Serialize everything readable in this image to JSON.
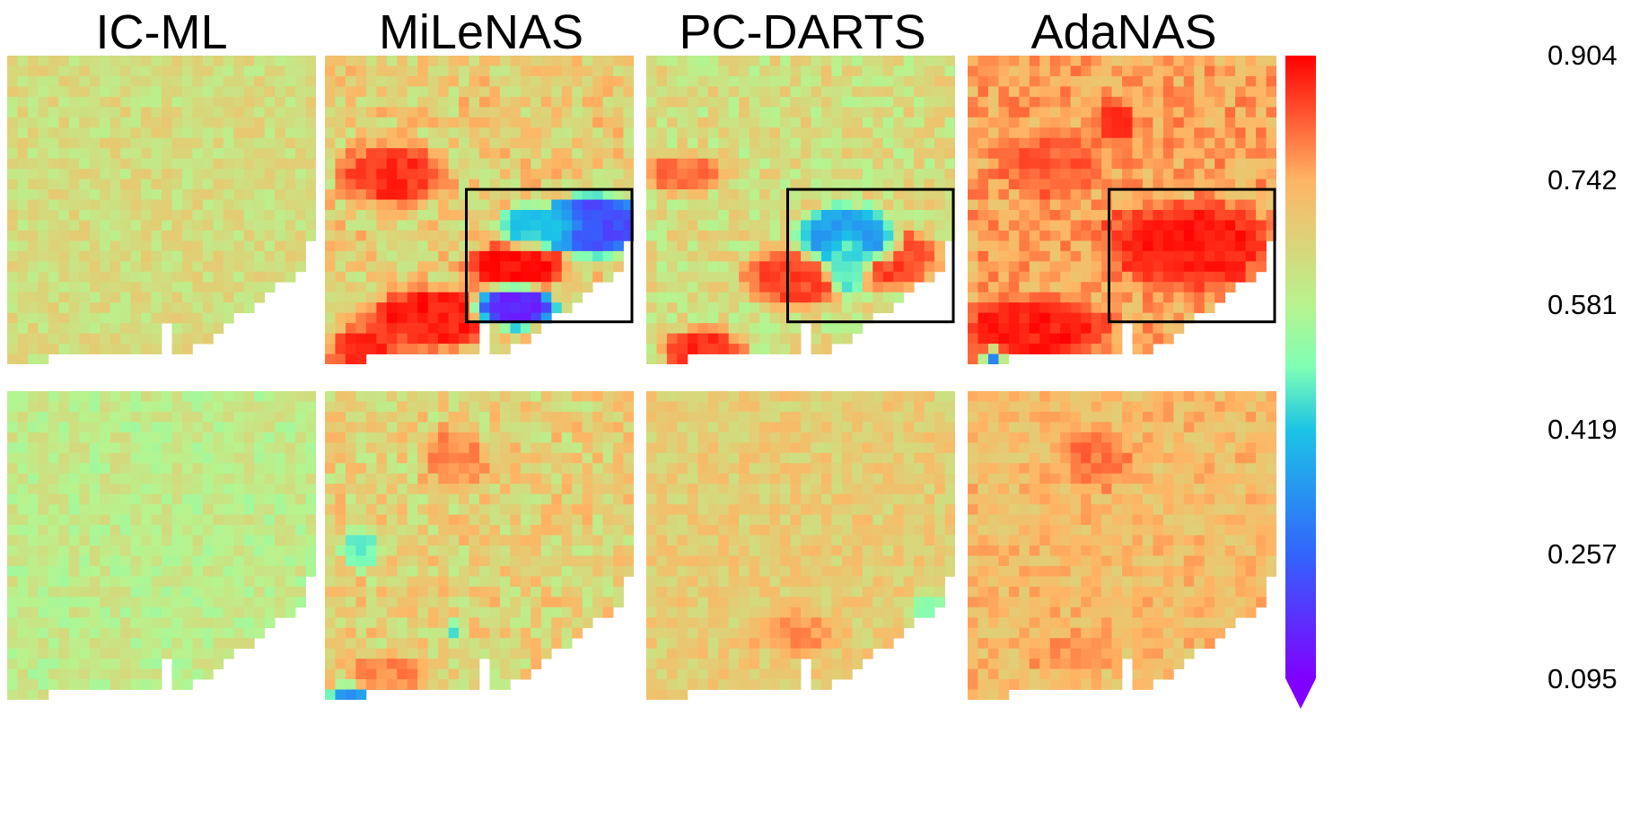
{
  "chart_data": {
    "type": "heatmap",
    "columns": [
      "IC-ML",
      "MiLeNAS",
      "PC-DARTS",
      "AdaNAS"
    ],
    "rows": 2,
    "grid": [
      30,
      30
    ],
    "colormap": "rainbow",
    "colorbar": {
      "min": 0.095,
      "max": 0.904,
      "ticks": [
        "0.904",
        "0.742",
        "0.581",
        "0.419",
        "0.257",
        "0.095"
      ],
      "extend": "min"
    },
    "panels": [
      {
        "row": 0,
        "col": 0,
        "name": "IC-ML",
        "base": 0.64,
        "noise": 0.05,
        "hot": [],
        "highlight": null
      },
      {
        "row": 0,
        "col": 1,
        "name": "MiLeNAS",
        "base": 0.68,
        "noise": 0.08,
        "hot": [
          {
            "cx": 6,
            "cy": 11,
            "rx": 5,
            "ry": 3,
            "v": 0.86
          },
          {
            "cx": 10,
            "cy": 25,
            "rx": 6,
            "ry": 3,
            "v": 0.88
          },
          {
            "cx": 18,
            "cy": 20,
            "rx": 5,
            "ry": 2,
            "v": 0.89
          },
          {
            "cx": 3,
            "cy": 28,
            "rx": 3,
            "ry": 2,
            "v": 0.87
          }
        ],
        "cold": [
          {
            "cx": 26,
            "cy": 16,
            "rx": 6,
            "ry": 3,
            "v": 0.22
          },
          {
            "cx": 18,
            "cy": 24,
            "rx": 4,
            "ry": 2,
            "v": 0.16
          },
          {
            "cx": 20,
            "cy": 16,
            "rx": 4,
            "ry": 2,
            "v": 0.42
          }
        ],
        "highlight": {
          "x0": 14,
          "y0": 13,
          "x1": 30,
          "y1": 25
        }
      },
      {
        "row": 0,
        "col": 2,
        "name": "PC-DARTS",
        "base": 0.64,
        "noise": 0.07,
        "hot": [
          {
            "cx": 3,
            "cy": 11,
            "rx": 4,
            "ry": 2,
            "v": 0.8
          },
          {
            "cx": 5,
            "cy": 28,
            "rx": 4,
            "ry": 2,
            "v": 0.86
          },
          {
            "cx": 14,
            "cy": 21,
            "rx": 5,
            "ry": 3,
            "v": 0.84
          },
          {
            "cx": 23,
            "cy": 19,
            "rx": 5,
            "ry": 3,
            "v": 0.84
          }
        ],
        "cold": [
          {
            "cx": 19,
            "cy": 17,
            "rx": 5,
            "ry": 3,
            "v": 0.36
          },
          {
            "cx": 19,
            "cy": 20,
            "rx": 2,
            "ry": 3,
            "v": 0.46
          }
        ],
        "highlight": {
          "x0": 14,
          "y0": 13,
          "x1": 30,
          "y1": 25
        }
      },
      {
        "row": 0,
        "col": 3,
        "name": "AdaNAS",
        "base": 0.75,
        "noise": 0.06,
        "hot": [
          {
            "cx": 21,
            "cy": 18,
            "rx": 8,
            "ry": 4,
            "v": 0.88
          },
          {
            "cx": 8,
            "cy": 10,
            "rx": 5,
            "ry": 3,
            "v": 0.82
          },
          {
            "cx": 6,
            "cy": 26,
            "rx": 7,
            "ry": 3,
            "v": 0.88
          },
          {
            "cx": 14,
            "cy": 6,
            "rx": 2,
            "ry": 2,
            "v": 0.86
          }
        ],
        "cold": [
          {
            "cx": 2,
            "cy": 29,
            "rx": 1,
            "ry": 1,
            "v": 0.3
          }
        ],
        "highlight": {
          "x0": 14,
          "y0": 13,
          "x1": 30,
          "y1": 25
        }
      },
      {
        "row": 1,
        "col": 0,
        "name": "IC-ML",
        "base": 0.6,
        "noise": 0.05,
        "hot": [],
        "highlight": null
      },
      {
        "row": 1,
        "col": 1,
        "name": "MiLeNAS",
        "base": 0.67,
        "noise": 0.08,
        "hot": [
          {
            "cx": 12,
            "cy": 6,
            "rx": 3,
            "ry": 3,
            "v": 0.78
          },
          {
            "cx": 6,
            "cy": 27,
            "rx": 4,
            "ry": 2,
            "v": 0.78
          }
        ],
        "cold": [
          {
            "cx": 3,
            "cy": 15,
            "rx": 2,
            "ry": 2,
            "v": 0.48
          },
          {
            "cx": 12,
            "cy": 23,
            "rx": 1,
            "ry": 1,
            "v": 0.45
          },
          {
            "cx": 2,
            "cy": 29,
            "rx": 2,
            "ry": 1,
            "v": 0.35
          }
        ],
        "highlight": null
      },
      {
        "row": 1,
        "col": 2,
        "name": "PC-DARTS",
        "base": 0.68,
        "noise": 0.05,
        "hot": [
          {
            "cx": 14,
            "cy": 23,
            "rx": 4,
            "ry": 2,
            "v": 0.77
          }
        ],
        "cold": [
          {
            "cx": 27,
            "cy": 21,
            "rx": 2,
            "ry": 2,
            "v": 0.5
          }
        ],
        "highlight": null
      },
      {
        "row": 1,
        "col": 3,
        "name": "AdaNAS",
        "base": 0.72,
        "noise": 0.05,
        "hot": [
          {
            "cx": 12,
            "cy": 6,
            "rx": 3,
            "ry": 3,
            "v": 0.8
          },
          {
            "cx": 10,
            "cy": 25,
            "rx": 4,
            "ry": 2,
            "v": 0.77
          }
        ],
        "cold": [],
        "highlight": null
      }
    ]
  }
}
